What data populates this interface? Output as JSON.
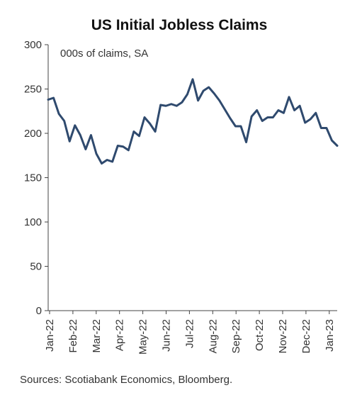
{
  "chart_data": {
    "type": "line",
    "title": "US Initial Jobless Claims",
    "annotation": "000s of claims, SA",
    "source": "Sources: Scotiabank Economics, Bloomberg.",
    "xlabel": "",
    "ylabel": "",
    "ylim": [
      0,
      300
    ],
    "yticks": [
      0,
      50,
      100,
      150,
      200,
      250,
      300
    ],
    "ytick_labels": [
      "0",
      "50",
      "100",
      "150",
      "200",
      "250",
      "300"
    ],
    "x_tick_labels": [
      "Jan-22",
      "Feb-22",
      "Mar-22",
      "Apr-22",
      "May-22",
      "Jun-22",
      "Jul-22",
      "Aug-22",
      "Sep-22",
      "Oct-22",
      "Nov-22",
      "Dec-22",
      "Jan-23"
    ],
    "line_color": "#2f4a6e",
    "grid": false,
    "series": [
      {
        "values": [
          238,
          240,
          222,
          214,
          191,
          209,
          198,
          182,
          198,
          177,
          166,
          170,
          168,
          186,
          185,
          181,
          202,
          197,
          218,
          211,
          202,
          232,
          231,
          233,
          231,
          235,
          244,
          261,
          237,
          248,
          252,
          245,
          237,
          227,
          217,
          208,
          208,
          190,
          219,
          226,
          214,
          218,
          218,
          226,
          223,
          241,
          226,
          231,
          212,
          216,
          223,
          206,
          206,
          192,
          186
        ]
      }
    ]
  }
}
